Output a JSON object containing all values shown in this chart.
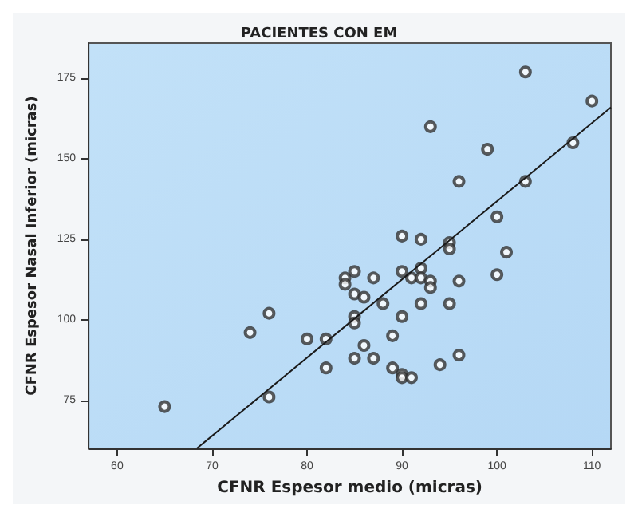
{
  "chart_data": {
    "type": "scatter",
    "title": "PACIENTES CON EM",
    "xlabel": "CFNR Espesor medio (micras)",
    "ylabel": "CFNR Espesor Nasal Inferior (micras)",
    "xlim": [
      57,
      112
    ],
    "ylim": [
      60,
      186
    ],
    "xticks": [
      60,
      70,
      80,
      90,
      100,
      110
    ],
    "yticks": [
      75,
      100,
      125,
      150,
      175
    ],
    "grid": false,
    "marker": "circle",
    "series": [
      {
        "color": "#333333",
        "x": [
          103,
          110,
          93,
          99,
          108,
          96,
          103,
          100,
          90,
          92,
          95,
          95,
          101,
          84,
          84,
          85,
          87,
          90,
          91,
          92,
          92,
          93,
          93,
          96,
          100,
          85,
          86,
          88,
          92,
          95,
          85,
          85,
          90,
          89,
          86,
          85,
          87,
          89,
          90,
          90,
          91,
          94,
          96,
          65,
          76,
          74,
          80,
          82,
          82,
          76
        ],
        "values": [
          177,
          168,
          160,
          153,
          155,
          143,
          143,
          132,
          126,
          125,
          124,
          122,
          121,
          113,
          111,
          115,
          113,
          115,
          113,
          116,
          113,
          112,
          110,
          112,
          114,
          108,
          107,
          105,
          105,
          105,
          101,
          99,
          101,
          95,
          92,
          88,
          88,
          85,
          83,
          82,
          82,
          86,
          89,
          73,
          102,
          96,
          94,
          94,
          85,
          76
        ]
      },
      {
        "type": "line",
        "color": "#1a1a1a",
        "x": [
          68.4,
          112
        ],
        "values": [
          60,
          166
        ],
        "marker": "none",
        "line_style": "solid"
      }
    ]
  }
}
